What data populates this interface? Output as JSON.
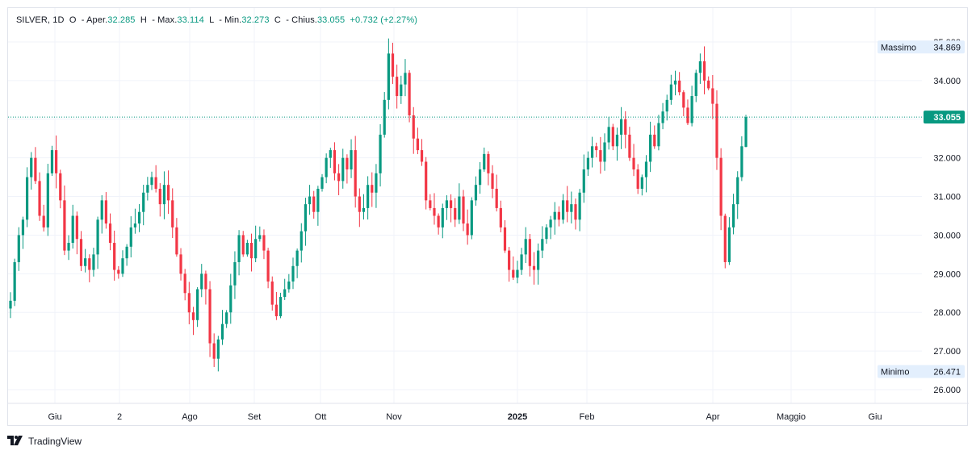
{
  "legend": {
    "symbol": "SILVER",
    "interval": "1D",
    "open_label": "O",
    "open_prefix": "- Aper.",
    "open": "32.285",
    "high_label": "H",
    "high_prefix": "- Max.",
    "high": "33.114",
    "low_label": "L",
    "low_prefix": "- Min.",
    "low": "32.273",
    "close_label": "C",
    "close_prefix": "- Chius.",
    "close": "33.055",
    "change": "+0.732 (+2.27%)"
  },
  "colors": {
    "up": "#089981",
    "down": "#f23645",
    "grid": "#f0f3fa",
    "axis_text": "#131722",
    "badge_bg": "#e3effd"
  },
  "price_axis": {
    "ticks": [
      "35.000",
      "34.000",
      "33.000",
      "32.000",
      "31.000",
      "30.000",
      "29.000",
      "28.000",
      "27.000",
      "26.000"
    ],
    "max_label": "Massimo",
    "max_value": "34.869",
    "min_label": "Minimo",
    "min_value": "26.471",
    "last_price": "33.055"
  },
  "time_axis": {
    "labels": [
      "Giu",
      "2",
      "Ago",
      "Set",
      "Ott",
      "Nov",
      "2025",
      "Feb",
      "Apr",
      "Maggio",
      "Giu"
    ]
  },
  "footer": {
    "brand": "TradingView"
  },
  "chart_data": {
    "type": "candlestick",
    "symbol": "SILVER",
    "interval": "1D",
    "ylim": [
      25.7,
      35.0
    ],
    "y_ticks": [
      26,
      27,
      28,
      29,
      30,
      31,
      32,
      33,
      34,
      35
    ],
    "x_labels": [
      "Giu",
      "2",
      "Ago",
      "Set",
      "Ott",
      "Nov",
      "2025",
      "Feb",
      "Apr",
      "Maggio",
      "Giu"
    ],
    "last_candle": {
      "open": 32.285,
      "high": 33.114,
      "low": 32.273,
      "close": 33.055
    },
    "highest": 34.869,
    "lowest": 26.471,
    "close_path": [
      28.3,
      29.3,
      30.0,
      30.4,
      31.5,
      32.0,
      31.4,
      30.5,
      30.2,
      31.6,
      32.2,
      31.6,
      30.9,
      29.6,
      29.8,
      30.5,
      29.9,
      29.2,
      29.4,
      29.1,
      29.5,
      30.4,
      30.9,
      30.3,
      29.8,
      29.1,
      29.0,
      29.4,
      29.7,
      30.2,
      30.3,
      30.6,
      31.1,
      31.3,
      31.5,
      31.2,
      30.8,
      31.3,
      30.9,
      30.2,
      29.5,
      29.0,
      28.5,
      28.0,
      27.8,
      28.6,
      29.0,
      28.6,
      27.2,
      26.8,
      27.3,
      27.7,
      28.0,
      28.7,
      29.3,
      30.0,
      29.5,
      29.8,
      29.4,
      29.9,
      30.0,
      29.6,
      28.8,
      28.2,
      27.9,
      28.4,
      28.6,
      28.8,
      29.2,
      29.6,
      30.1,
      30.8,
      31.0,
      30.6,
      31.2,
      31.5,
      32.0,
      32.2,
      31.6,
      31.4,
      32.0,
      31.7,
      32.2,
      31.0,
      30.6,
      30.7,
      31.3,
      31.1,
      31.6,
      32.6,
      33.5,
      34.7,
      34.1,
      33.6,
      33.9,
      34.2,
      33.1,
      32.5,
      32.2,
      31.9,
      30.9,
      30.7,
      30.5,
      30.2,
      30.7,
      30.9,
      30.7,
      30.4,
      31.0,
      30.3,
      30.0,
      30.9,
      31.3,
      31.7,
      32.1,
      31.6,
      31.2,
      30.7,
      30.2,
      29.6,
      29.1,
      28.9,
      29.1,
      29.5,
      29.9,
      29.2,
      29.1,
      29.6,
      29.9,
      30.2,
      30.4,
      30.6,
      30.4,
      30.9,
      30.6,
      30.8,
      30.4,
      31.1,
      31.7,
      32.0,
      32.3,
      32.2,
      31.9,
      32.4,
      32.8,
      32.3,
      32.6,
      33.0,
      32.6,
      32.0,
      31.7,
      31.2,
      31.5,
      31.9,
      32.6,
      32.3,
      32.9,
      33.2,
      33.5,
      33.9,
      34.0,
      33.7,
      33.3,
      32.9,
      33.6,
      34.2,
      34.5,
      34.0,
      33.8,
      33.4,
      32.0,
      30.5,
      29.3,
      30.2,
      30.8,
      31.5,
      32.3,
      33.055
    ]
  }
}
